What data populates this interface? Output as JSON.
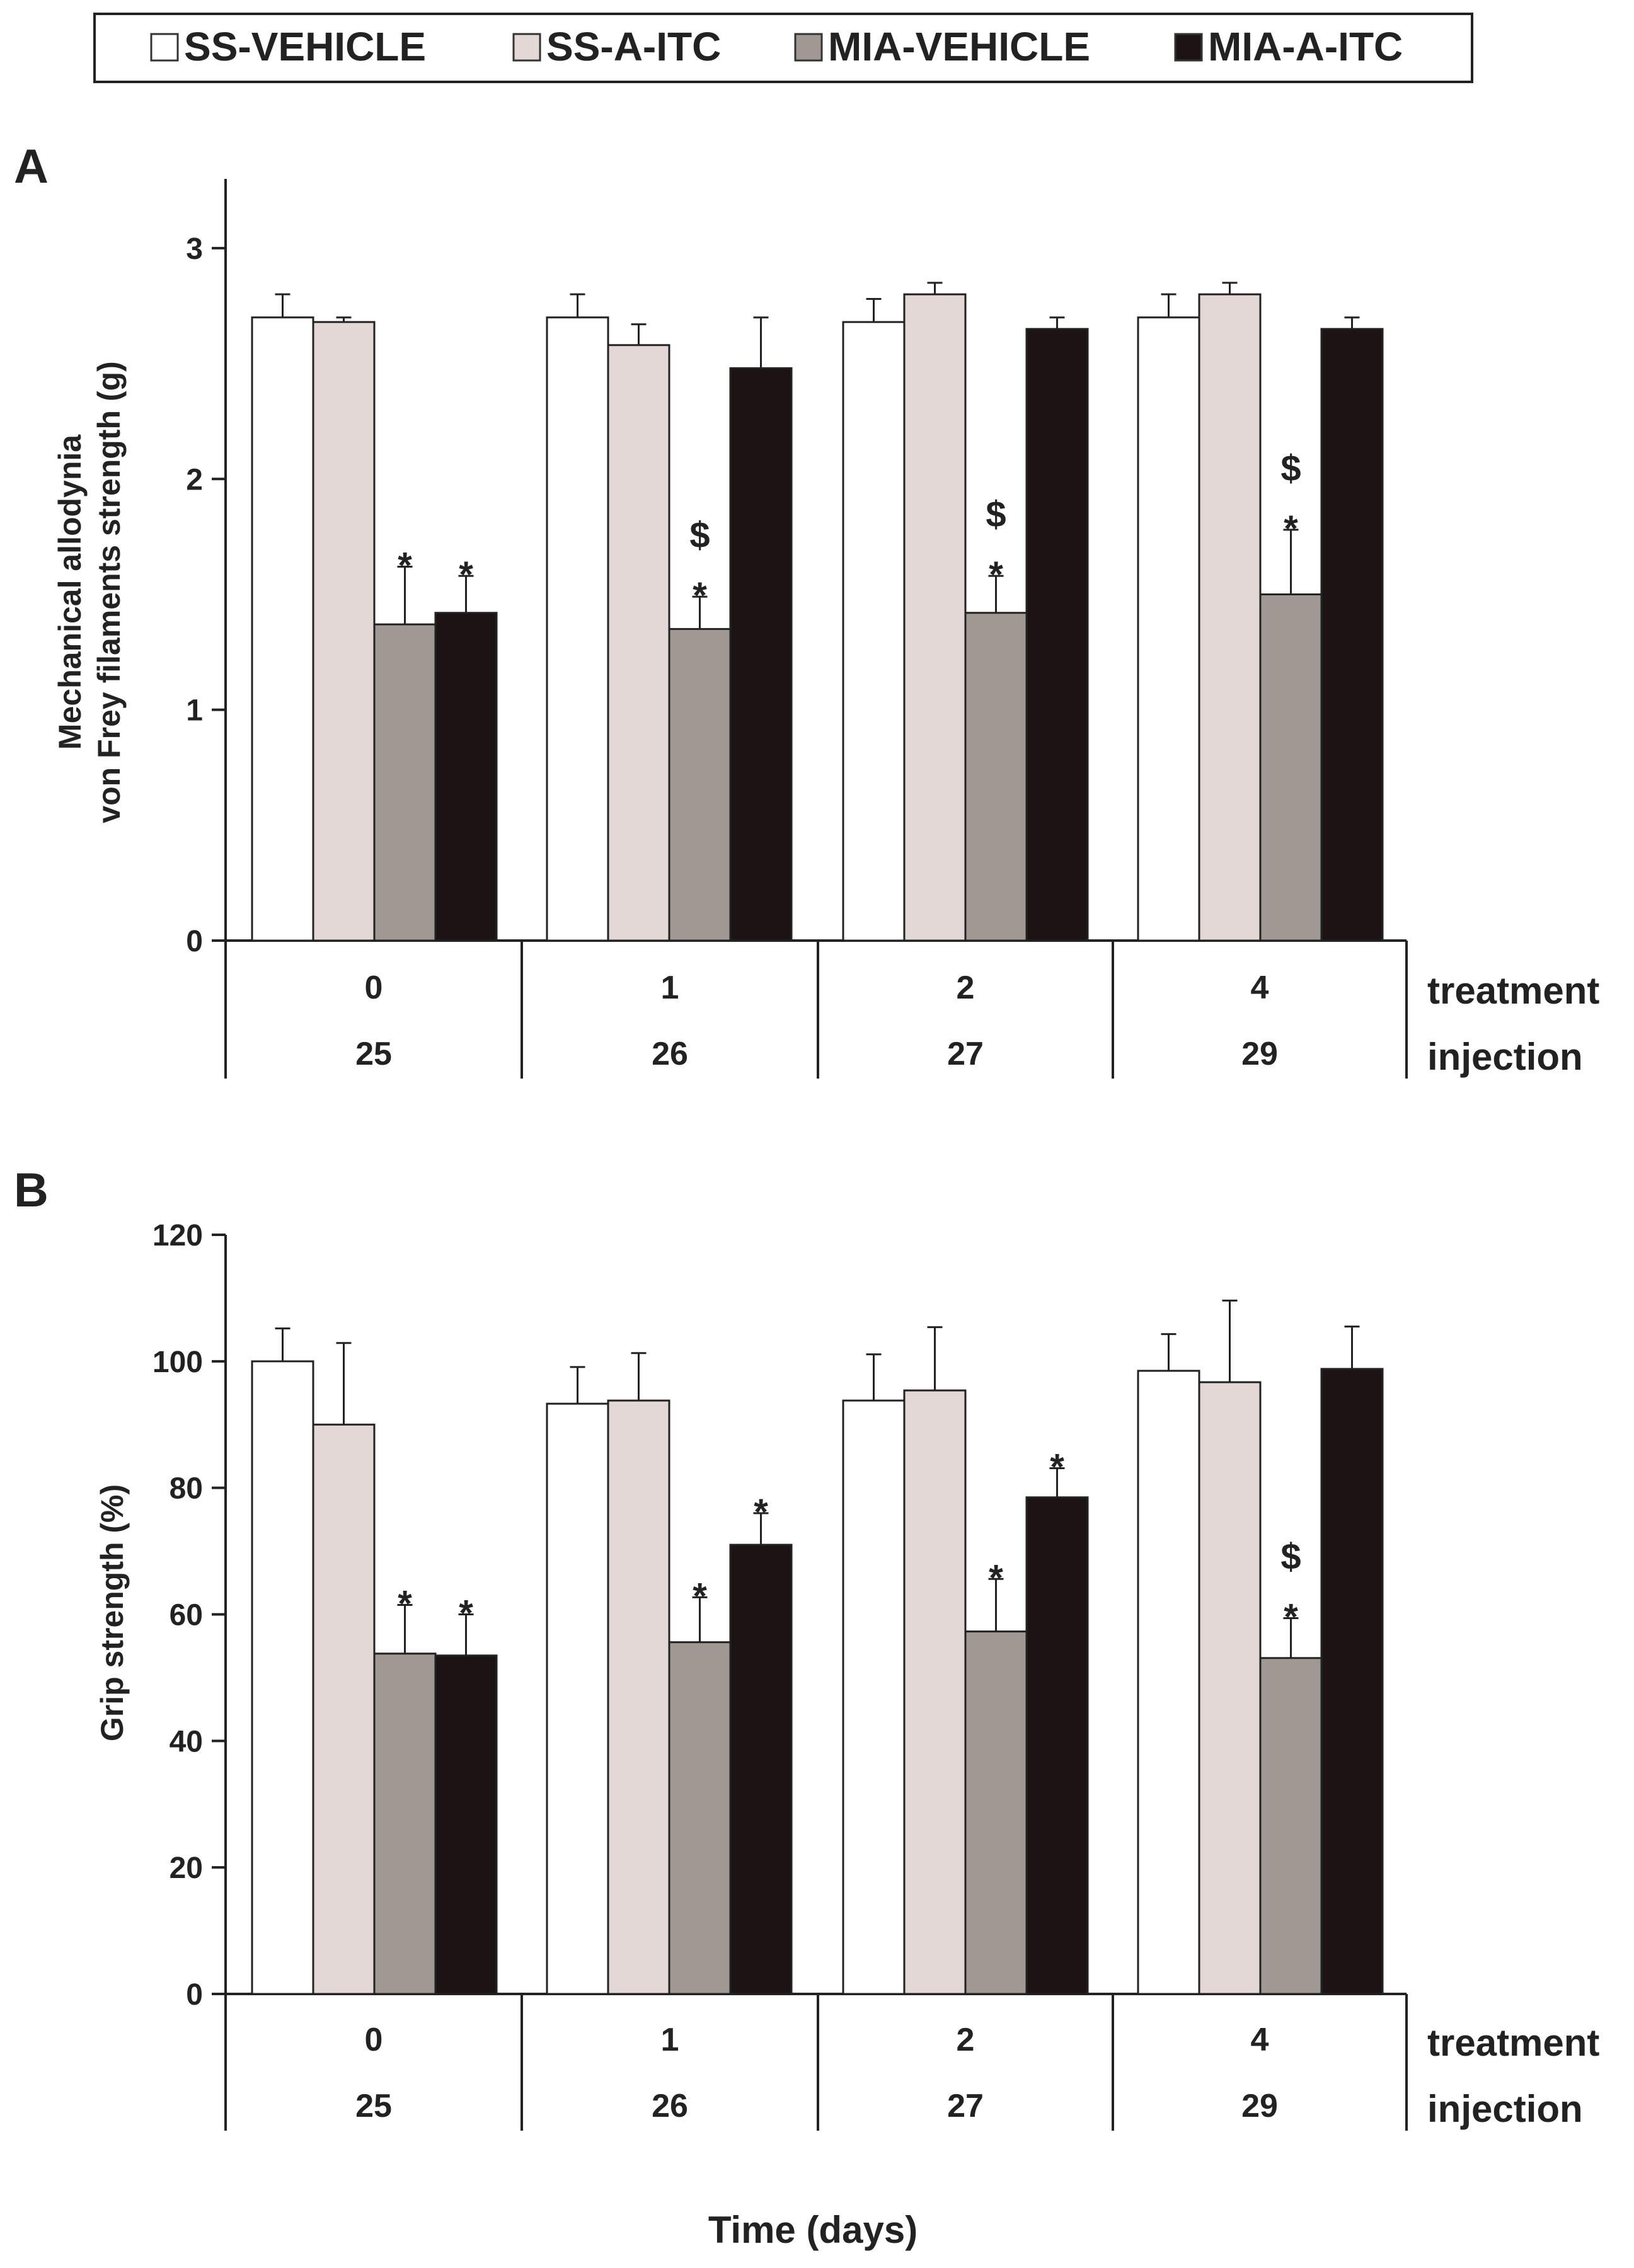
{
  "legend": {
    "items": [
      {
        "label": "SS-VEHICLE",
        "color": "#ffffff"
      },
      {
        "label": "SS-A-ITC",
        "color": "#e3d8d6"
      },
      {
        "label": "MIA-VEHICLE",
        "color": "#a09893"
      },
      {
        "label": "MIA-A-ITC",
        "color": "#1c1414"
      }
    ]
  },
  "x_title": "Time (days)",
  "chart_data": [
    {
      "type": "bar",
      "panel": "A",
      "ylabel_lines": [
        "Mechanical allodynia",
        "von Frey filaments strength (g)"
      ],
      "ylim": [
        0,
        3.3
      ],
      "yticks": [
        "0",
        "1",
        "2",
        "3"
      ],
      "row_labels": [
        "treatment",
        "injection"
      ],
      "categories": [
        {
          "treatment": "0",
          "injection": "25"
        },
        {
          "treatment": "1",
          "injection": "26"
        },
        {
          "treatment": "2",
          "injection": "27"
        },
        {
          "treatment": "4",
          "injection": "29"
        }
      ],
      "series": [
        {
          "name": "SS-VEHICLE",
          "values": [
            2.7,
            2.7,
            2.68,
            2.7
          ],
          "errors": [
            0.1,
            0.1,
            0.1,
            0.1
          ]
        },
        {
          "name": "SS-A-ITC",
          "values": [
            2.68,
            2.58,
            2.8,
            2.8
          ],
          "errors": [
            0.02,
            0.09,
            0.05,
            0.05
          ]
        },
        {
          "name": "MIA-VEHICLE",
          "values": [
            1.37,
            1.35,
            1.42,
            1.5
          ],
          "errors": [
            0.25,
            0.14,
            0.16,
            0.28
          ]
        },
        {
          "name": "MIA-A-ITC",
          "values": [
            1.42,
            2.48,
            2.65,
            2.65
          ],
          "errors": [
            0.16,
            0.22,
            0.05,
            0.05
          ]
        }
      ],
      "annotations": [
        {
          "category": 0,
          "series": 2,
          "marks": [
            "*"
          ]
        },
        {
          "category": 0,
          "series": 3,
          "marks": [
            "*"
          ]
        },
        {
          "category": 1,
          "series": 2,
          "marks": [
            "$",
            "*"
          ]
        },
        {
          "category": 2,
          "series": 2,
          "marks": [
            "$",
            "*"
          ]
        },
        {
          "category": 3,
          "series": 2,
          "marks": [
            "$",
            "*"
          ]
        }
      ]
    },
    {
      "type": "bar",
      "panel": "B",
      "ylabel_lines": [
        "Grip strength (%)"
      ],
      "ylim": [
        0,
        120
      ],
      "yticks": [
        "0",
        "20",
        "40",
        "60",
        "80",
        "100",
        "120"
      ],
      "row_labels": [
        "treatment",
        "injection"
      ],
      "categories": [
        {
          "treatment": "0",
          "injection": "25"
        },
        {
          "treatment": "1",
          "injection": "26"
        },
        {
          "treatment": "2",
          "injection": "27"
        },
        {
          "treatment": "4",
          "injection": "29"
        }
      ],
      "series": [
        {
          "name": "SS-VEHICLE",
          "values": [
            100,
            93.3,
            93.8,
            98.5
          ],
          "errors": [
            5.2,
            5.8,
            7.3,
            5.8
          ]
        },
        {
          "name": "SS-A-ITC",
          "values": [
            90,
            93.8,
            95.4,
            96.7
          ],
          "errors": [
            12.9,
            7.5,
            10.0,
            12.9
          ]
        },
        {
          "name": "MIA-VEHICLE",
          "values": [
            53.8,
            55.6,
            57.3,
            53.1
          ],
          "errors": [
            7.7,
            7.1,
            8.3,
            6.3
          ]
        },
        {
          "name": "MIA-A-ITC",
          "values": [
            53.5,
            71.0,
            78.5,
            98.8
          ],
          "errors": [
            6.5,
            5.0,
            4.6,
            6.7
          ]
        }
      ],
      "annotations": [
        {
          "category": 0,
          "series": 2,
          "marks": [
            "*"
          ]
        },
        {
          "category": 0,
          "series": 3,
          "marks": [
            "*"
          ]
        },
        {
          "category": 1,
          "series": 2,
          "marks": [
            "*"
          ]
        },
        {
          "category": 1,
          "series": 3,
          "marks": [
            "*"
          ]
        },
        {
          "category": 2,
          "series": 2,
          "marks": [
            "*"
          ]
        },
        {
          "category": 2,
          "series": 3,
          "marks": [
            "*"
          ]
        },
        {
          "category": 3,
          "series": 2,
          "marks": [
            "$",
            "*"
          ]
        }
      ]
    }
  ]
}
